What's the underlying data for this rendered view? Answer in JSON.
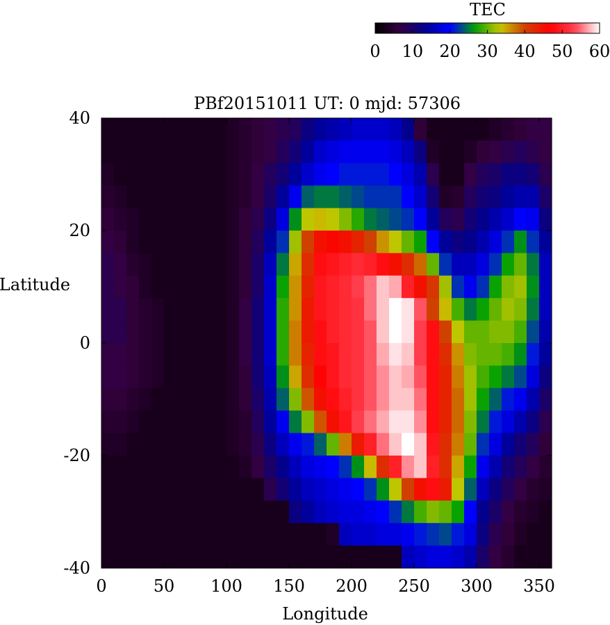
{
  "chart_data": {
    "type": "heatmap",
    "title": "PBf20151011  UT: 0  mjd: 57306",
    "xlabel": "Longitude",
    "ylabel": "Latitude",
    "xlim": [
      0,
      360
    ],
    "ylim": [
      -40,
      40
    ],
    "x_ticks": [
      "0",
      "50",
      "100",
      "150",
      "200",
      "250",
      "300",
      "350"
    ],
    "y_ticks": [
      "40",
      "20",
      "0",
      "-20",
      "-40"
    ],
    "grid": false,
    "colorbar": {
      "label": "TEC",
      "range": [
        0,
        60
      ],
      "ticks": [
        "0",
        "10",
        "20",
        "30",
        "40",
        "50",
        "60"
      ],
      "placement": "top-right",
      "palette": [
        "#000000",
        "#35003f",
        "#000090",
        "#0000ff",
        "#00a000",
        "#c8c800",
        "#d04000",
        "#ff0000",
        "#ff4050",
        "#ffffff"
      ]
    },
    "lon_step": 10,
    "lat_step": 4,
    "lon_centers": [
      5,
      15,
      25,
      35,
      45,
      55,
      65,
      75,
      85,
      95,
      105,
      115,
      125,
      135,
      145,
      155,
      165,
      175,
      185,
      195,
      205,
      215,
      225,
      235,
      245,
      255,
      265,
      275,
      285,
      295,
      305,
      315,
      325,
      335,
      345,
      355
    ],
    "lat_centers": [
      38,
      34,
      30,
      26,
      22,
      18,
      14,
      10,
      6,
      2,
      -2,
      -6,
      -10,
      -14,
      -18,
      -22,
      -26,
      -30,
      -34,
      -38
    ],
    "values": [
      [
        3,
        3,
        3,
        3,
        3,
        3,
        3,
        3,
        3,
        3,
        4,
        5,
        6,
        7,
        8,
        9,
        12,
        14,
        15,
        16,
        17,
        17,
        17,
        16,
        13,
        6,
        3,
        3,
        3,
        3,
        3,
        4,
        5,
        6,
        7,
        7
      ],
      [
        3,
        3,
        3,
        3,
        3,
        3,
        3,
        3,
        3,
        3,
        4,
        5,
        6,
        7,
        9,
        11,
        14,
        17,
        18,
        19,
        19,
        19,
        19,
        18,
        16,
        12,
        4,
        3,
        3,
        4,
        6,
        7,
        8,
        9,
        8,
        7
      ],
      [
        4,
        3,
        3,
        3,
        3,
        3,
        3,
        3,
        3,
        3,
        4,
        5,
        7,
        9,
        11,
        14,
        17,
        19,
        20,
        21,
        21,
        21,
        21,
        20,
        18,
        15,
        8,
        3,
        3,
        7,
        9,
        10,
        12,
        12,
        11,
        8
      ],
      [
        5,
        4,
        3,
        3,
        3,
        3,
        3,
        3,
        3,
        3,
        4,
        5,
        7,
        10,
        14,
        19,
        24,
        25,
        25,
        24,
        23,
        22,
        22,
        22,
        20,
        17,
        11,
        4,
        5,
        9,
        11,
        12,
        14,
        15,
        15,
        10
      ],
      [
        6,
        5,
        4,
        3,
        3,
        3,
        3,
        3,
        3,
        3,
        4,
        6,
        8,
        12,
        18,
        26,
        33,
        34,
        33,
        31,
        28,
        25,
        24,
        23,
        22,
        20,
        14,
        9,
        8,
        11,
        13,
        15,
        17,
        20,
        19,
        12
      ],
      [
        7,
        6,
        4,
        3,
        3,
        3,
        3,
        3,
        3,
        3,
        4,
        6,
        9,
        14,
        22,
        32,
        40,
        45,
        46,
        45,
        43,
        40,
        36,
        33,
        30,
        27,
        20,
        14,
        12,
        13,
        15,
        18,
        22,
        26,
        22,
        14
      ],
      [
        8,
        7,
        5,
        4,
        3,
        3,
        3,
        3,
        3,
        3,
        4,
        6,
        10,
        16,
        25,
        35,
        42,
        48,
        49,
        50,
        51,
        50,
        48,
        45,
        42,
        38,
        30,
        22,
        16,
        16,
        18,
        22,
        27,
        30,
        25,
        16
      ],
      [
        8,
        7,
        6,
        4,
        3,
        3,
        3,
        3,
        3,
        3,
        4,
        6,
        10,
        17,
        27,
        36,
        43,
        49,
        50,
        51,
        53,
        55,
        58,
        57,
        50,
        45,
        41,
        32,
        22,
        19,
        22,
        27,
        31,
        32,
        26,
        16
      ],
      [
        8,
        8,
        6,
        5,
        4,
        3,
        3,
        3,
        3,
        3,
        4,
        7,
        11,
        17,
        28,
        36,
        44,
        49,
        50,
        51,
        52,
        55,
        58,
        60,
        59,
        54,
        40,
        34,
        29,
        25,
        27,
        30,
        32,
        31,
        25,
        16
      ],
      [
        8,
        8,
        6,
        5,
        4,
        3,
        3,
        3,
        3,
        3,
        4,
        7,
        11,
        17,
        28,
        37,
        44,
        48,
        50,
        51,
        52,
        54,
        58,
        60,
        59,
        53,
        48,
        40,
        33,
        30,
        30,
        31,
        31,
        29,
        23,
        15
      ],
      [
        7,
        7,
        6,
        5,
        4,
        3,
        3,
        3,
        3,
        3,
        4,
        7,
        11,
        17,
        28,
        37,
        43,
        48,
        49,
        51,
        52,
        54,
        57,
        59,
        58,
        53,
        48,
        42,
        36,
        31,
        30,
        30,
        29,
        26,
        21,
        14
      ],
      [
        7,
        7,
        6,
        5,
        4,
        3,
        3,
        3,
        3,
        3,
        4,
        6,
        11,
        16,
        26,
        35,
        42,
        47,
        49,
        51,
        52,
        54,
        56,
        58,
        57,
        54,
        48,
        43,
        37,
        32,
        29,
        27,
        25,
        23,
        18,
        12
      ],
      [
        6,
        6,
        5,
        4,
        3,
        3,
        3,
        3,
        3,
        3,
        4,
        6,
        10,
        15,
        24,
        31,
        39,
        45,
        48,
        50,
        52,
        54,
        56,
        58,
        58,
        55,
        48,
        43,
        38,
        32,
        27,
        24,
        21,
        19,
        15,
        10
      ],
      [
        5,
        5,
        4,
        3,
        3,
        3,
        3,
        3,
        3,
        3,
        4,
        5,
        9,
        14,
        19,
        25,
        31,
        39,
        45,
        49,
        53,
        55,
        57,
        59,
        59,
        56,
        48,
        43,
        38,
        31,
        25,
        21,
        18,
        15,
        12,
        8
      ],
      [
        4,
        4,
        3,
        3,
        3,
        3,
        3,
        3,
        3,
        3,
        4,
        5,
        8,
        12,
        16,
        19,
        21,
        24,
        30,
        37,
        44,
        50,
        55,
        58,
        60,
        58,
        49,
        42,
        37,
        30,
        22,
        18,
        14,
        11,
        9,
        6
      ],
      [
        3,
        3,
        3,
        3,
        3,
        3,
        3,
        3,
        3,
        3,
        3,
        4,
        7,
        10,
        13,
        16,
        18,
        19,
        20,
        22,
        26,
        34,
        42,
        50,
        56,
        58,
        50,
        42,
        35,
        27,
        19,
        15,
        11,
        9,
        7,
        5
      ],
      [
        3,
        3,
        3,
        3,
        3,
        3,
        3,
        3,
        3,
        3,
        3,
        3,
        3,
        8,
        11,
        14,
        16,
        17,
        18,
        19,
        20,
        22,
        26,
        33,
        40,
        45,
        48,
        44,
        33,
        24,
        16,
        12,
        9,
        7,
        5,
        4
      ],
      [
        3,
        3,
        3,
        3,
        3,
        3,
        3,
        3,
        3,
        3,
        3,
        3,
        3,
        3,
        3,
        12,
        14,
        16,
        17,
        18,
        18,
        19,
        20,
        22,
        25,
        29,
        31,
        30,
        27,
        20,
        13,
        10,
        7,
        5,
        4,
        3
      ],
      [
        3,
        3,
        3,
        3,
        3,
        3,
        3,
        3,
        3,
        3,
        3,
        3,
        3,
        3,
        3,
        3,
        3,
        3,
        4,
        16,
        17,
        17,
        18,
        18,
        19,
        21,
        22,
        23,
        21,
        18,
        12,
        8,
        6,
        4,
        3,
        3
      ],
      [
        3,
        3,
        3,
        3,
        3,
        3,
        3,
        3,
        3,
        3,
        3,
        3,
        3,
        3,
        3,
        3,
        3,
        3,
        3,
        3,
        3,
        3,
        3,
        3,
        16,
        17,
        18,
        18,
        17,
        15,
        10,
        7,
        5,
        3,
        3,
        3
      ]
    ]
  }
}
